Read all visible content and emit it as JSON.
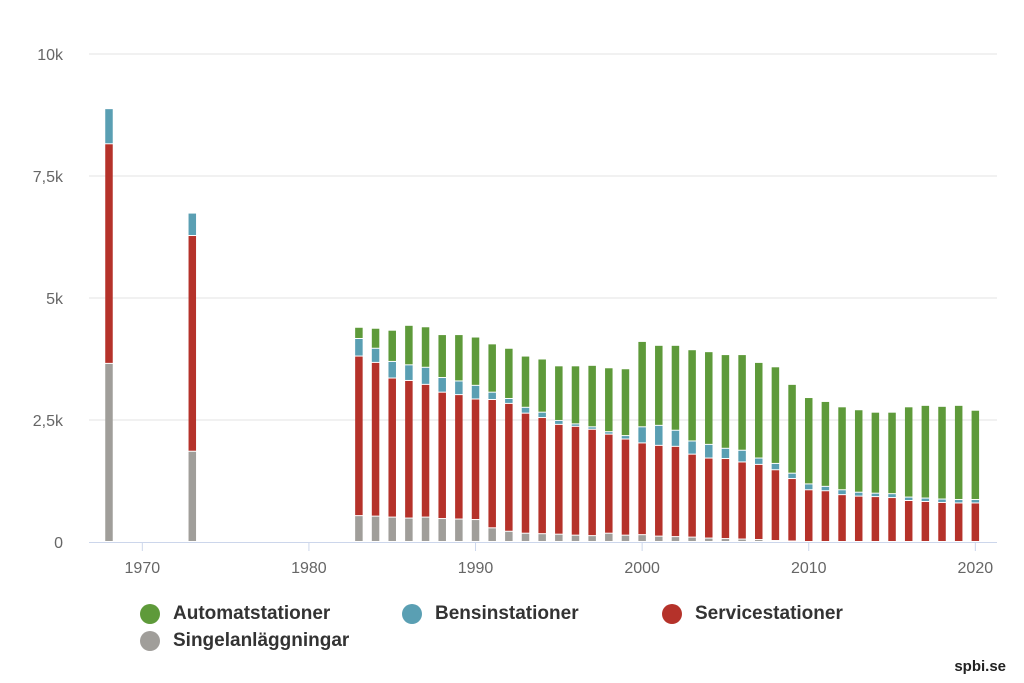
{
  "chart_data": {
    "type": "bar",
    "stacked": true,
    "title": "",
    "xlabel": "",
    "ylabel": "",
    "ylim": [
      0,
      10000
    ],
    "xlim": [
      1966.8,
      2021.3
    ],
    "y_ticks": [
      {
        "value": 0,
        "label": "0"
      },
      {
        "value": 2500,
        "label": "2,5k"
      },
      {
        "value": 5000,
        "label": "5k"
      },
      {
        "value": 7500,
        "label": "7,5k"
      },
      {
        "value": 10000,
        "label": "10k"
      }
    ],
    "x_ticks": [
      {
        "value": 1970,
        "label": "1970"
      },
      {
        "value": 1980,
        "label": "1980"
      },
      {
        "value": 1990,
        "label": "1990"
      },
      {
        "value": 2000,
        "label": "2000"
      },
      {
        "value": 2010,
        "label": "2010"
      },
      {
        "value": 2020,
        "label": "2020"
      }
    ],
    "x": [
      1968,
      1973,
      1983,
      1984,
      1985,
      1986,
      1987,
      1988,
      1989,
      1990,
      1991,
      1992,
      1993,
      1994,
      1995,
      1996,
      1997,
      1998,
      1999,
      2000,
      2001,
      2002,
      2003,
      2004,
      2005,
      2006,
      2007,
      2008,
      2009,
      2010,
      2011,
      2012,
      2013,
      2014,
      2015,
      2016,
      2017,
      2018,
      2019,
      2020
    ],
    "series": [
      {
        "name": "Singelanläggningar",
        "color": "#a09e9a",
        "values": [
          3650,
          1850,
          530,
          520,
          500,
          480,
          500,
          470,
          460,
          450,
          280,
          210,
          170,
          160,
          150,
          130,
          120,
          170,
          130,
          140,
          110,
          100,
          90,
          70,
          60,
          50,
          40,
          20,
          10,
          0,
          0,
          0,
          0,
          0,
          0,
          0,
          0,
          0,
          0,
          0
        ]
      },
      {
        "name": "Servicestationer",
        "color": "#b5322a",
        "values": [
          4500,
          4420,
          3270,
          3150,
          2850,
          2820,
          2720,
          2590,
          2550,
          2470,
          2630,
          2620,
          2460,
          2380,
          2250,
          2230,
          2180,
          2030,
          1970,
          1880,
          1860,
          1850,
          1700,
          1640,
          1640,
          1580,
          1540,
          1450,
          1280,
          1060,
          1040,
          960,
          930,
          920,
          900,
          840,
          820,
          800,
          790,
          790
        ]
      },
      {
        "name": "Bensinstationer",
        "color": "#5a9fb3",
        "values": [
          720,
          460,
          360,
          290,
          340,
          320,
          350,
          300,
          280,
          280,
          150,
          100,
          120,
          110,
          80,
          50,
          50,
          50,
          70,
          330,
          410,
          330,
          270,
          280,
          210,
          240,
          130,
          130,
          110,
          120,
          90,
          100,
          80,
          70,
          80,
          70,
          70,
          70,
          70,
          70
        ]
      },
      {
        "name": "Automatstationer",
        "color": "#5e9a3a",
        "values": [
          0,
          0,
          230,
          410,
          640,
          810,
          830,
          880,
          950,
          990,
          990,
          1030,
          1050,
          1090,
          1120,
          1190,
          1260,
          1310,
          1370,
          1750,
          1640,
          1740,
          1870,
          1900,
          1920,
          1960,
          1960,
          1980,
          1820,
          1770,
          1740,
          1700,
          1690,
          1660,
          1670,
          1850,
          1900,
          1900,
          1930,
          1830
        ]
      }
    ],
    "legend_position": "bottom-left",
    "legend_order": [
      "Automatstationer",
      "Bensinstationer",
      "Servicestationer",
      "Singelanläggningar"
    ],
    "grid": true
  },
  "credit": "spbi.se"
}
